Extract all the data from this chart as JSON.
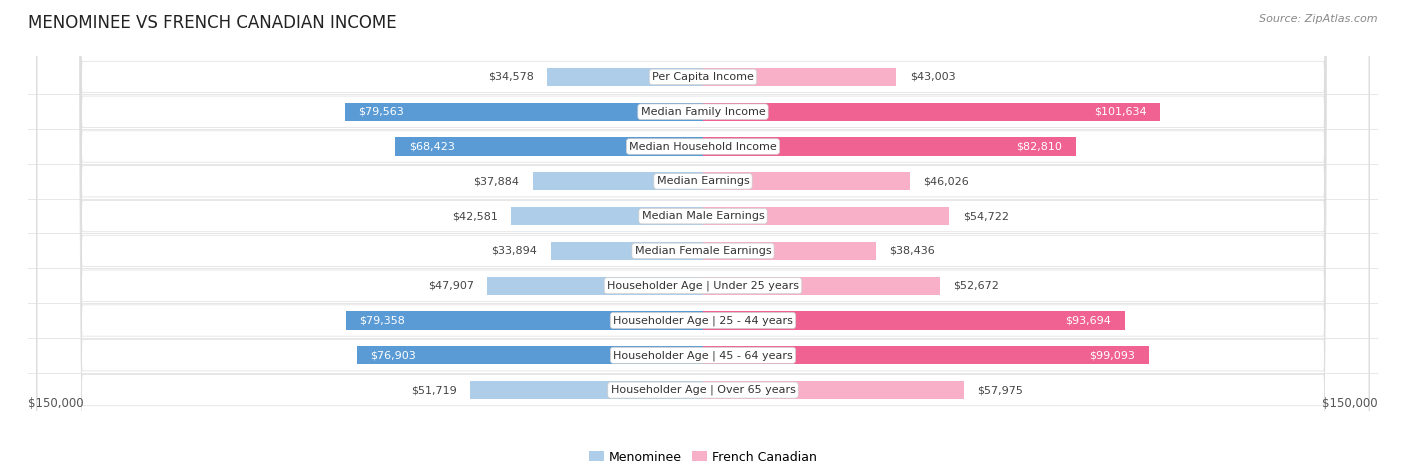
{
  "title": "MENOMINEE VS FRENCH CANADIAN INCOME",
  "source": "Source: ZipAtlas.com",
  "categories": [
    "Per Capita Income",
    "Median Family Income",
    "Median Household Income",
    "Median Earnings",
    "Median Male Earnings",
    "Median Female Earnings",
    "Householder Age | Under 25 years",
    "Householder Age | 25 - 44 years",
    "Householder Age | 45 - 64 years",
    "Householder Age | Over 65 years"
  ],
  "menominee_values": [
    34578,
    79563,
    68423,
    37884,
    42581,
    33894,
    47907,
    79358,
    76903,
    51719
  ],
  "french_canadian_values": [
    43003,
    101634,
    82810,
    46026,
    54722,
    38436,
    52672,
    93694,
    99093,
    57975
  ],
  "menominee_labels": [
    "$34,578",
    "$79,563",
    "$68,423",
    "$37,884",
    "$42,581",
    "$33,894",
    "$47,907",
    "$79,358",
    "$76,903",
    "$51,719"
  ],
  "french_canadian_labels": [
    "$43,003",
    "$101,634",
    "$82,810",
    "$46,026",
    "$54,722",
    "$38,436",
    "$52,672",
    "$93,694",
    "$99,093",
    "$57,975"
  ],
  "menominee_color_light": "#aecde8",
  "menominee_color_dark": "#5b9bd5",
  "french_canadian_color_light": "#f7b0c8",
  "french_canadian_color_dark": "#f06292",
  "men_dark_threshold": 60000,
  "fc_dark_threshold": 70000,
  "max_value": 150000,
  "axis_label_left": "$150,000",
  "axis_label_right": "$150,000",
  "legend_menominee": "Menominee",
  "legend_french_canadian": "French Canadian",
  "fig_bg": "#ffffff",
  "row_bg_light": "#f5f5f7",
  "row_bg_dark": "#ebebed"
}
